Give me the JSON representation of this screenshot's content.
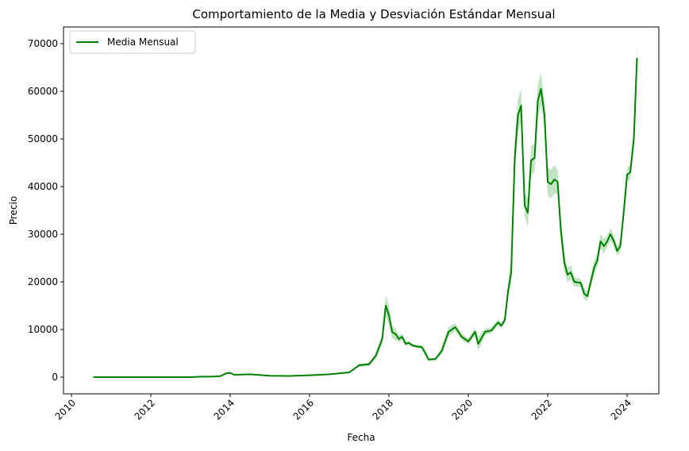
{
  "chart_data": {
    "type": "line",
    "title": "Comportamiento de la Media y Desviación Estándar Mensual",
    "xlabel": "Fecha",
    "ylabel": "Precio",
    "xlim": [
      2009.8,
      2024.8
    ],
    "ylim": [
      -3500,
      73500
    ],
    "x_ticks": [
      2010,
      2012,
      2014,
      2016,
      2018,
      2020,
      2022,
      2024
    ],
    "y_ticks": [
      0,
      10000,
      20000,
      30000,
      40000,
      50000,
      60000,
      70000
    ],
    "grid": false,
    "legend": {
      "position": "top-left",
      "entries": [
        "Media Mensual"
      ]
    },
    "colors": {
      "line": "#008000",
      "band": "#8fce8f"
    },
    "series": [
      {
        "name": "Media Mensual",
        "x": [
          2010.55,
          2011.0,
          2011.5,
          2012.0,
          2012.5,
          2013.0,
          2013.25,
          2013.5,
          2013.75,
          2013.9,
          2014.0,
          2014.1,
          2014.5,
          2015.0,
          2015.5,
          2016.0,
          2016.5,
          2017.0,
          2017.25,
          2017.5,
          2017.67,
          2017.83,
          2017.92,
          2018.0,
          2018.08,
          2018.17,
          2018.25,
          2018.33,
          2018.42,
          2018.5,
          2018.58,
          2018.67,
          2018.83,
          2018.92,
          2019.0,
          2019.17,
          2019.33,
          2019.5,
          2019.67,
          2019.83,
          2020.0,
          2020.17,
          2020.25,
          2020.42,
          2020.58,
          2020.75,
          2020.83,
          2020.92,
          2021.0,
          2021.08,
          2021.17,
          2021.25,
          2021.33,
          2021.42,
          2021.5,
          2021.58,
          2021.67,
          2021.75,
          2021.83,
          2021.92,
          2022.0,
          2022.08,
          2022.17,
          2022.25,
          2022.33,
          2022.42,
          2022.5,
          2022.58,
          2022.67,
          2022.83,
          2022.92,
          2023.0,
          2023.17,
          2023.25,
          2023.33,
          2023.42,
          2023.5,
          2023.58,
          2023.67,
          2023.75,
          2023.83,
          2023.92,
          2024.0,
          2024.08,
          2024.17,
          2024.25
        ],
        "values": [
          0,
          0,
          0,
          0,
          0,
          0,
          100,
          100,
          200,
          800,
          900,
          500,
          600,
          300,
          250,
          400,
          600,
          1000,
          2500,
          2700,
          4500,
          8000,
          15000,
          13000,
          9500,
          9000,
          8000,
          8500,
          7000,
          7200,
          6700,
          6500,
          6300,
          5000,
          3700,
          3800,
          5500,
          9500,
          10500,
          8500,
          7500,
          9500,
          7000,
          9500,
          9800,
          11500,
          10800,
          12000,
          18000,
          22000,
          46000,
          55000,
          57000,
          36000,
          34500,
          45500,
          46000,
          58000,
          60500,
          55000,
          41000,
          40500,
          41500,
          41000,
          31000,
          24000,
          21500,
          22000,
          20000,
          19800,
          17500,
          17000,
          23000,
          24500,
          28500,
          27500,
          28500,
          30000,
          28500,
          26500,
          27500,
          35000,
          42500,
          43000,
          50000,
          67000
        ],
        "std": [
          0,
          0,
          0,
          0,
          0,
          0,
          20,
          20,
          50,
          200,
          200,
          100,
          80,
          50,
          40,
          50,
          80,
          150,
          300,
          300,
          700,
          1000,
          2200,
          2000,
          1300,
          1200,
          800,
          600,
          500,
          400,
          350,
          300,
          400,
          700,
          300,
          200,
          700,
          1000,
          800,
          700,
          600,
          900,
          1500,
          700,
          600,
          700,
          600,
          700,
          1500,
          2500,
          3500,
          3500,
          3500,
          2500,
          3000,
          3000,
          3000,
          3500,
          3500,
          3000,
          3000,
          3000,
          3000,
          2500,
          2500,
          2000,
          1500,
          1500,
          1000,
          800,
          1200,
          1000,
          1500,
          1500,
          1500,
          1500,
          1200,
          1300,
          1200,
          1000,
          1200,
          1500,
          1500,
          1500,
          2000,
          3000
        ]
      }
    ]
  }
}
